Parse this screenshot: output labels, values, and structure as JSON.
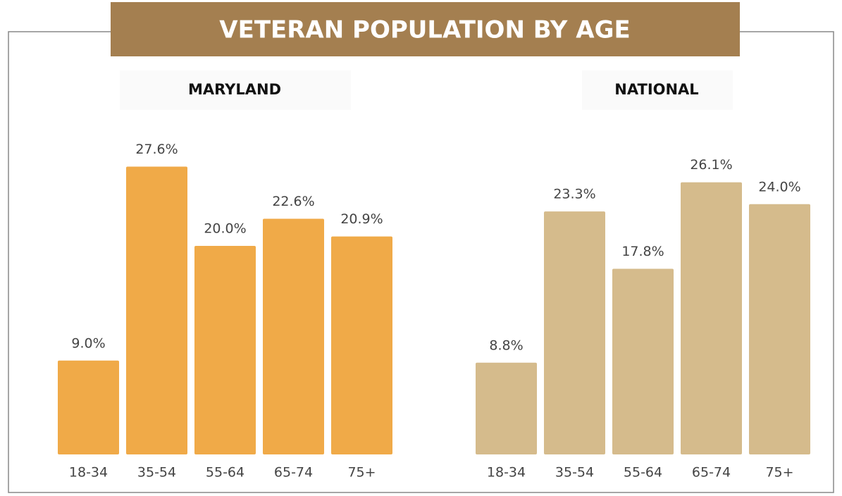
{
  "title": "VETERAN POPULATION BY AGE",
  "chart_data": [
    {
      "type": "bar",
      "title": "MARYLAND",
      "categories": [
        "18-34",
        "35-54",
        "55-64",
        "65-74",
        "75+"
      ],
      "values": [
        9.0,
        27.6,
        20.0,
        22.6,
        20.9
      ],
      "value_labels": [
        "9.0%",
        "27.6%",
        "20.0%",
        "22.6%",
        "20.9%"
      ],
      "color": "#f0aa48"
    },
    {
      "type": "bar",
      "title": "NATIONAL",
      "categories": [
        "18-34",
        "35-54",
        "55-64",
        "65-74",
        "75+"
      ],
      "values": [
        8.8,
        23.3,
        17.8,
        26.1,
        24.0
      ],
      "value_labels": [
        "8.8%",
        "23.3%",
        "17.8%",
        "26.1%",
        "24.0%"
      ],
      "color": "#d5bb8c"
    }
  ]
}
